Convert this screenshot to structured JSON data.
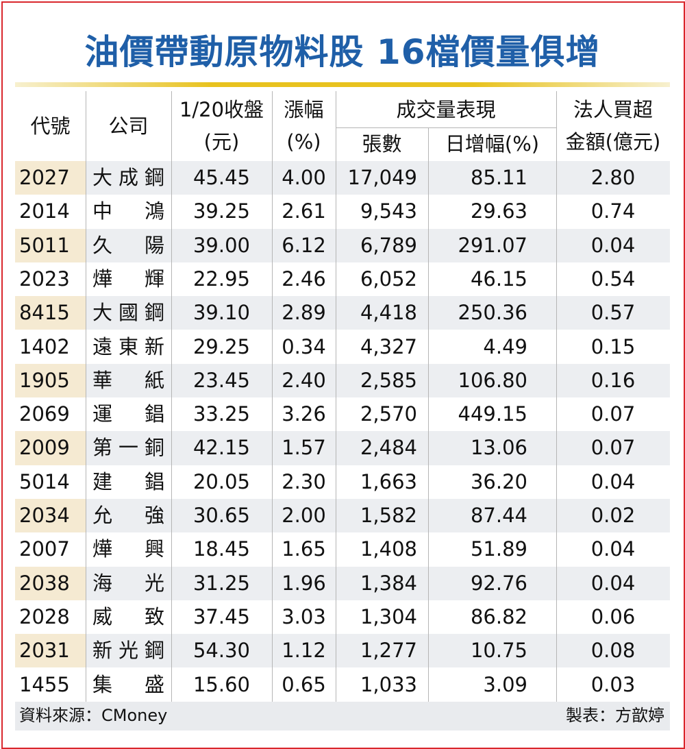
{
  "title": "油價帶動原物料股 16檔價量俱增",
  "header": {
    "code": "代號",
    "company": "公司",
    "price": [
      "1/20收盤",
      "(元)"
    ],
    "change": [
      "漲幅",
      "(%)"
    ],
    "volume_group": "成交量表現",
    "volume": "張數",
    "increase": "日增幅(%)",
    "amount": [
      "法人買超",
      "金額(億元)"
    ]
  },
  "table": {
    "rows": [
      [
        "2027",
        "大成鋼",
        "45.45",
        "4.00",
        "17,049",
        "85.11",
        "2.80"
      ],
      [
        "2014",
        "中鴻",
        "39.25",
        "2.61",
        "9,543",
        "29.63",
        "0.74"
      ],
      [
        "5011",
        "久陽",
        "39.00",
        "6.12",
        "6,789",
        "291.07",
        "0.04"
      ],
      [
        "2023",
        "燁輝",
        "22.95",
        "2.46",
        "6,052",
        "46.15",
        "0.54"
      ],
      [
        "8415",
        "大國鋼",
        "39.10",
        "2.89",
        "4,418",
        "250.36",
        "0.57"
      ],
      [
        "1402",
        "遠東新",
        "29.25",
        "0.34",
        "4,327",
        "4.49",
        "0.15"
      ],
      [
        "1905",
        "華紙",
        "23.45",
        "2.40",
        "2,585",
        "106.80",
        "0.16"
      ],
      [
        "2069",
        "運錩",
        "33.25",
        "3.26",
        "2,570",
        "449.15",
        "0.07"
      ],
      [
        "2009",
        "第一銅",
        "42.15",
        "1.57",
        "2,484",
        "13.06",
        "0.07"
      ],
      [
        "5014",
        "建錩",
        "20.05",
        "2.30",
        "1,663",
        "36.20",
        "0.04"
      ],
      [
        "2034",
        "允強",
        "30.65",
        "2.00",
        "1,582",
        "87.44",
        "0.02"
      ],
      [
        "2007",
        "燁興",
        "18.45",
        "1.65",
        "1,408",
        "51.89",
        "0.04"
      ],
      [
        "2038",
        "海光",
        "31.25",
        "1.96",
        "1,384",
        "92.76",
        "0.04"
      ],
      [
        "2028",
        "威致",
        "37.45",
        "3.03",
        "1,304",
        "86.82",
        "0.06"
      ],
      [
        "2031",
        "新光鋼",
        "54.30",
        "1.12",
        "1,277",
        "10.75",
        "0.08"
      ],
      [
        "1455",
        "集盛",
        "15.60",
        "0.65",
        "1,033",
        "3.09",
        "0.03"
      ]
    ]
  },
  "footer": {
    "source": "資料來源：CMoney",
    "credit": "製表：方歆婷"
  }
}
